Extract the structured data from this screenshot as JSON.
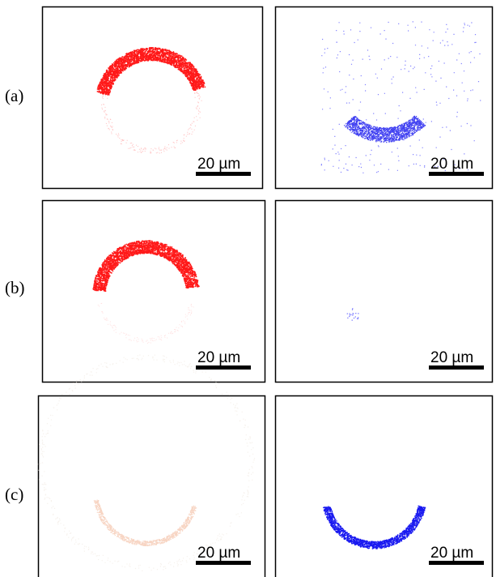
{
  "rows": [
    {
      "label": "(a)",
      "panels": [
        {
          "scale_bar": "20 µm"
        },
        {
          "scale_bar": "20 µm"
        }
      ]
    },
    {
      "label": "(b)",
      "panels": [
        {
          "scale_bar": "20 µm"
        },
        {
          "scale_bar": "20 µm"
        }
      ]
    },
    {
      "label": "(c)",
      "panels": [
        {
          "scale_bar": "20 µm"
        },
        {
          "scale_bar": "20 µm"
        }
      ]
    }
  ]
}
